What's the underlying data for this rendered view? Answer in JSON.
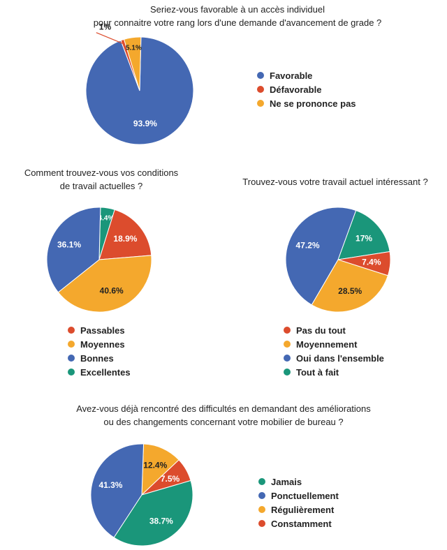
{
  "colors": {
    "blue": "#4468b3",
    "red": "#dc4c2d",
    "orange": "#f4a82d",
    "green": "#1a967a"
  },
  "chart_data": [
    {
      "type": "pie",
      "title_lines": [
        "Seriez-vous favorable à un accès individuel",
        "pour connaitre votre rang lors d'une demande d'avancement de grade ?"
      ],
      "start_angle": 1.4,
      "slices": [
        {
          "label": "Favorable",
          "value": 93.9,
          "display": "93.9%",
          "color": "#4468b3"
        },
        {
          "label": "Défavorable",
          "value": 1.0,
          "display": "1%",
          "color": "#dc4c2d"
        },
        {
          "label": "Ne se prononce pas",
          "value": 5.1,
          "display": "5.1%",
          "color": "#f4a82d"
        }
      ],
      "legend": [
        "Favorable",
        "Défavorable",
        "Ne se prononce pas"
      ]
    },
    {
      "type": "pie",
      "title_lines": [
        "Comment trouvez-vous vos conditions",
        "de travail actuelles ?"
      ],
      "start_angle": 1.4,
      "slices": [
        {
          "label": "Excellentes",
          "value": 4.4,
          "display": "4.4%",
          "color": "#1a967a"
        },
        {
          "label": "Passables",
          "value": 18.9,
          "display": "18.9%",
          "color": "#dc4c2d"
        },
        {
          "label": "Moyennes",
          "value": 40.6,
          "display": "40.6%",
          "color": "#f4a82d"
        },
        {
          "label": "Bonnes",
          "value": 36.1,
          "display": "36.1%",
          "color": "#4468b3"
        }
      ],
      "legend": [
        "Passables",
        "Moyennes",
        "Bonnes",
        "Excellentes"
      ]
    },
    {
      "type": "pie",
      "title_lines": [
        "Trouvez-vous votre travail actuel intéressant ?"
      ],
      "start_angle": 20.0,
      "slices": [
        {
          "label": "Tout à fait",
          "value": 17.0,
          "display": "17%",
          "color": "#1a967a"
        },
        {
          "label": "Pas du tout",
          "value": 7.4,
          "display": "7.4%",
          "color": "#dc4c2d"
        },
        {
          "label": "Moyennement",
          "value": 28.5,
          "display": "28.5%",
          "color": "#f4a82d"
        },
        {
          "label": "Oui dans l'ensemble",
          "value": 47.2,
          "display": "47.2%",
          "color": "#4468b3"
        }
      ],
      "legend": [
        "Pas du tout",
        "Moyennement",
        "Oui dans l'ensemble",
        "Tout à fait"
      ]
    },
    {
      "type": "pie",
      "title_lines": [
        "Avez-vous déjà rencontré des difficultés en demandant des améliorations",
        "ou des changements concernant votre mobilier de bureau ?"
      ],
      "start_angle": 2.0,
      "slices": [
        {
          "label": "Régulièrement",
          "value": 12.4,
          "display": "12.4%",
          "color": "#f4a82d"
        },
        {
          "label": "Constamment",
          "value": 7.5,
          "display": "7.5%",
          "color": "#dc4c2d"
        },
        {
          "label": "Jamais",
          "value": 38.7,
          "display": "38.7%",
          "color": "#1a967a"
        },
        {
          "label": "Ponctuellement",
          "value": 41.3,
          "display": "41.3%",
          "color": "#4468b3"
        }
      ],
      "legend": [
        "Jamais",
        "Ponctuellement",
        "Régulièrement",
        "Constamment"
      ]
    }
  ]
}
